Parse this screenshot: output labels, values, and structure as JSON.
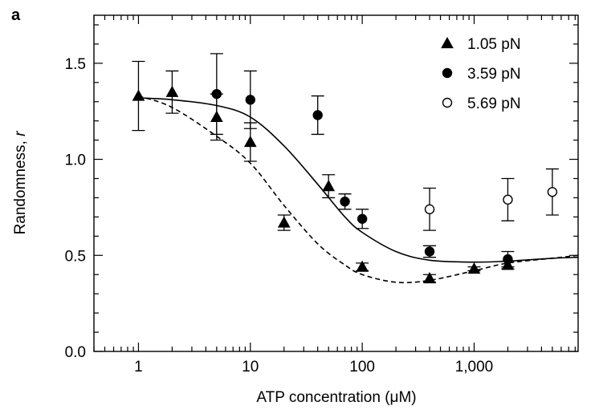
{
  "panel_label": "a",
  "chart_data": {
    "type": "scatter",
    "title": "",
    "xlabel": "ATP concentration (μM)",
    "ylabel_main": "Randomness, ",
    "ylabel_var": "r",
    "x_scale": "log",
    "xlim": [
      0.4,
      8500
    ],
    "ylim": [
      0,
      1.75
    ],
    "x_ticks": [
      1,
      10,
      100,
      1000
    ],
    "x_tick_labels": [
      "1",
      "10",
      "100",
      "1,000"
    ],
    "y_ticks": [
      0.0,
      0.5,
      1.0,
      1.5
    ],
    "y_tick_labels": [
      "0.0",
      "0.5",
      "1.0",
      "1.5"
    ],
    "legend_position": "top-right",
    "series": [
      {
        "name": "1.05 pN",
        "marker": "triangle",
        "filled": true,
        "points": [
          {
            "x": 1,
            "y": 1.33,
            "err": 0.18
          },
          {
            "x": 2,
            "y": 1.35,
            "err": 0.11
          },
          {
            "x": 5,
            "y": 1.22,
            "err": 0.12
          },
          {
            "x": 10,
            "y": 1.09,
            "err": 0.1
          },
          {
            "x": 20,
            "y": 0.67,
            "err": 0.04
          },
          {
            "x": 50,
            "y": 0.86,
            "err": 0.06
          },
          {
            "x": 100,
            "y": 0.44,
            "err": 0.02
          },
          {
            "x": 400,
            "y": 0.38,
            "err": 0.02
          },
          {
            "x": 1000,
            "y": 0.43,
            "err": 0.01
          },
          {
            "x": 2000,
            "y": 0.45,
            "err": 0.02
          }
        ]
      },
      {
        "name": "3.59 pN",
        "marker": "circle",
        "filled": true,
        "points": [
          {
            "x": 5,
            "y": 1.34,
            "err": 0.21
          },
          {
            "x": 10,
            "y": 1.31,
            "err": 0.15
          },
          {
            "x": 40,
            "y": 1.23,
            "err": 0.1
          },
          {
            "x": 70,
            "y": 0.78,
            "err": 0.04
          },
          {
            "x": 100,
            "y": 0.69,
            "err": 0.05
          },
          {
            "x": 400,
            "y": 0.52,
            "err": 0.03
          },
          {
            "x": 2000,
            "y": 0.48,
            "err": 0.04
          }
        ]
      },
      {
        "name": "5.69 pN",
        "marker": "circle",
        "filled": false,
        "points": [
          {
            "x": 400,
            "y": 0.74,
            "err": 0.11
          },
          {
            "x": 2000,
            "y": 0.79,
            "err": 0.11
          },
          {
            "x": 5000,
            "y": 0.83,
            "err": 0.12
          }
        ]
      }
    ],
    "fit_curves": [
      {
        "style": "solid",
        "points": [
          [
            1,
            1.32
          ],
          [
            2,
            1.31
          ],
          [
            5,
            1.28
          ],
          [
            10,
            1.22
          ],
          [
            20,
            1.07
          ],
          [
            40,
            0.87
          ],
          [
            70,
            0.7
          ],
          [
            100,
            0.62
          ],
          [
            200,
            0.52
          ],
          [
            400,
            0.475
          ],
          [
            1000,
            0.465
          ],
          [
            2000,
            0.47
          ],
          [
            5000,
            0.485
          ],
          [
            8500,
            0.49
          ]
        ]
      },
      {
        "style": "dashed",
        "points": [
          [
            1,
            1.33
          ],
          [
            2,
            1.27
          ],
          [
            5,
            1.12
          ],
          [
            10,
            0.98
          ],
          [
            20,
            0.76
          ],
          [
            40,
            0.56
          ],
          [
            70,
            0.45
          ],
          [
            100,
            0.4
          ],
          [
            200,
            0.36
          ],
          [
            400,
            0.37
          ],
          [
            1000,
            0.42
          ],
          [
            2000,
            0.46
          ],
          [
            5000,
            0.485
          ],
          [
            8500,
            0.5
          ]
        ]
      }
    ]
  }
}
